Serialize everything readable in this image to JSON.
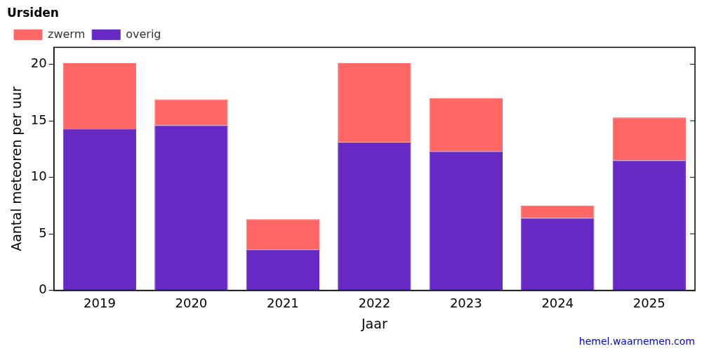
{
  "chart_data": {
    "type": "bar",
    "title": "Ursiden",
    "categories": [
      "2019",
      "2020",
      "2021",
      "2022",
      "2023",
      "2024",
      "2025"
    ],
    "series": [
      {
        "name": "zwerm",
        "color": "#ff6666",
        "values": [
          5.8,
          2.3,
          2.7,
          7.0,
          4.7,
          1.1,
          3.8
        ]
      },
      {
        "name": "overig",
        "color": "#6629c4",
        "values": [
          14.3,
          14.6,
          3.6,
          13.1,
          12.3,
          6.4,
          11.5
        ]
      }
    ],
    "stacked": true,
    "x_label": "Jaar",
    "y_label": "Aantal meteoren per uur",
    "ylim": [
      0,
      21.5
    ],
    "yticks": [
      0,
      5,
      10,
      15,
      20
    ],
    "grid": false,
    "legend": "top-left",
    "annotations": [
      "hemel.waarnemen.com"
    ]
  }
}
